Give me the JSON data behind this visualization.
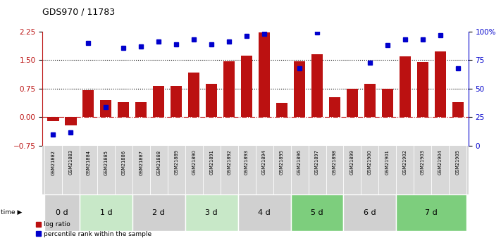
{
  "title": "GDS970 / 11783",
  "samples": [
    "GSM21882",
    "GSM21883",
    "GSM21884",
    "GSM21885",
    "GSM21886",
    "GSM21887",
    "GSM21888",
    "GSM21889",
    "GSM21890",
    "GSM21891",
    "GSM21892",
    "GSM21893",
    "GSM21894",
    "GSM21895",
    "GSM21896",
    "GSM21897",
    "GSM21898",
    "GSM21899",
    "GSM21900",
    "GSM21901",
    "GSM21902",
    "GSM21903",
    "GSM21904",
    "GSM21905"
  ],
  "log_ratio": [
    -0.1,
    -0.22,
    0.72,
    0.45,
    0.4,
    0.4,
    0.82,
    0.82,
    1.18,
    0.88,
    1.47,
    1.62,
    2.22,
    0.38,
    1.47,
    1.65,
    0.52,
    0.75,
    0.88,
    0.75,
    1.6,
    1.45,
    1.72,
    0.4
  ],
  "pct_rank": [
    10,
    12,
    90,
    34,
    86,
    87,
    91,
    89,
    93,
    89,
    91,
    96,
    98,
    null,
    68,
    99,
    null,
    null,
    73,
    88,
    93,
    93,
    97,
    68
  ],
  "time_groups": [
    {
      "label": "0 d",
      "start": 0,
      "end": 2,
      "color": "#d0d0d0"
    },
    {
      "label": "1 d",
      "start": 2,
      "end": 5,
      "color": "#c8e8c8"
    },
    {
      "label": "2 d",
      "start": 5,
      "end": 8,
      "color": "#d0d0d0"
    },
    {
      "label": "3 d",
      "start": 8,
      "end": 11,
      "color": "#c8e8c8"
    },
    {
      "label": "4 d",
      "start": 11,
      "end": 14,
      "color": "#d0d0d0"
    },
    {
      "label": "5 d",
      "start": 14,
      "end": 17,
      "color": "#7dce7d"
    },
    {
      "label": "6 d",
      "start": 17,
      "end": 20,
      "color": "#d0d0d0"
    },
    {
      "label": "7 d",
      "start": 20,
      "end": 24,
      "color": "#7dce7d"
    }
  ],
  "bar_color": "#bb1111",
  "dot_color": "#0000cc",
  "ylim_left": [
    -0.75,
    2.25
  ],
  "ylim_right": [
    0,
    100
  ],
  "yticks_left": [
    -0.75,
    0.0,
    0.75,
    1.5,
    2.25
  ],
  "yticks_right": [
    0,
    25,
    50,
    75,
    100
  ],
  "hlines": [
    0.75,
    1.5
  ],
  "legend_items": [
    "log ratio",
    "percentile rank within the sample"
  ],
  "label_bg_color": "#d8d8d8",
  "fig_width": 7.11,
  "fig_height": 3.45,
  "fig_dpi": 100
}
